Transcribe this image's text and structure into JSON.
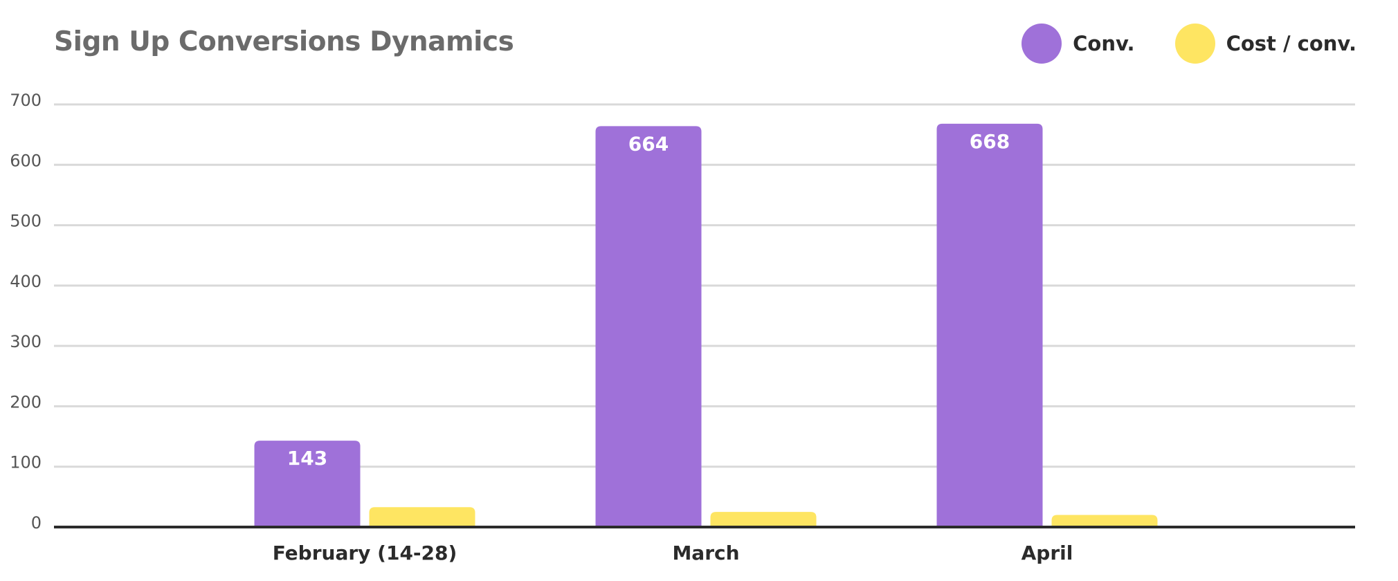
{
  "chart_data": {
    "type": "bar",
    "title": "Sign Up Conversions Dynamics",
    "xlabel": "",
    "ylabel": "",
    "categories": [
      "February (14-28)",
      "March",
      "April"
    ],
    "series": [
      {
        "name": "Conv.",
        "color": "#9f71d9",
        "values": [
          143,
          664,
          668
        ],
        "data_labels": [
          "143",
          "664",
          "668"
        ]
      },
      {
        "name": "Cost / conv.",
        "color": "#fee562",
        "values": [
          33,
          25,
          20
        ]
      }
    ],
    "ylim": [
      0,
      700
    ],
    "yticks": [
      0,
      100,
      200,
      300,
      400,
      500,
      600,
      700
    ],
    "grid": true,
    "legend_position": "top-right"
  }
}
